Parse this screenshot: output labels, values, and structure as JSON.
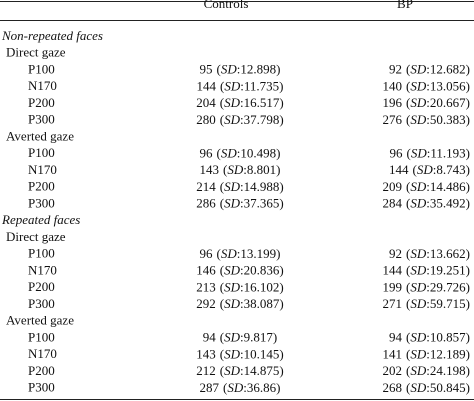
{
  "table": {
    "columns": [
      "Controls",
      "BP"
    ],
    "sd_notation": {
      "open": "(",
      "label": "SD",
      "sep": ":",
      "close": ")"
    },
    "sections": [
      {
        "title": "Non-repeated faces",
        "groups": [
          {
            "title": "Direct gaze",
            "rows": [
              {
                "label": "P100",
                "cells": [
                  {
                    "mean": 95,
                    "sd": 12.898
                  },
                  {
                    "mean": 92,
                    "sd": 12.682
                  }
                ]
              },
              {
                "label": "N170",
                "cells": [
                  {
                    "mean": 144,
                    "sd": 11.735
                  },
                  {
                    "mean": 140,
                    "sd": 13.056
                  }
                ]
              },
              {
                "label": "P200",
                "cells": [
                  {
                    "mean": 204,
                    "sd": 16.517
                  },
                  {
                    "mean": 196,
                    "sd": 20.667
                  }
                ]
              },
              {
                "label": "P300",
                "cells": [
                  {
                    "mean": 280,
                    "sd": 37.798
                  },
                  {
                    "mean": 276,
                    "sd": 50.383
                  }
                ]
              }
            ]
          },
          {
            "title": "Averted gaze",
            "rows": [
              {
                "label": "P100",
                "cells": [
                  {
                    "mean": 96,
                    "sd": 10.498
                  },
                  {
                    "mean": 96,
                    "sd": 11.193
                  }
                ]
              },
              {
                "label": "N170",
                "cells": [
                  {
                    "mean": 143,
                    "sd": 8.801
                  },
                  {
                    "mean": 144,
                    "sd": 8.743
                  }
                ]
              },
              {
                "label": "P200",
                "cells": [
                  {
                    "mean": 214,
                    "sd": 14.988
                  },
                  {
                    "mean": 209,
                    "sd": 14.486
                  }
                ]
              },
              {
                "label": "P300",
                "cells": [
                  {
                    "mean": 286,
                    "sd": 37.365
                  },
                  {
                    "mean": 284,
                    "sd": 35.492
                  }
                ]
              }
            ]
          }
        ]
      },
      {
        "title": "Repeated faces",
        "groups": [
          {
            "title": "Direct gaze",
            "rows": [
              {
                "label": "P100",
                "cells": [
                  {
                    "mean": 96,
                    "sd": 13.199
                  },
                  {
                    "mean": 92,
                    "sd": 13.662
                  }
                ]
              },
              {
                "label": "N170",
                "cells": [
                  {
                    "mean": 146,
                    "sd": 20.836
                  },
                  {
                    "mean": 144,
                    "sd": 19.251
                  }
                ]
              },
              {
                "label": "P200",
                "cells": [
                  {
                    "mean": 213,
                    "sd": 16.102
                  },
                  {
                    "mean": 199,
                    "sd": 29.726
                  }
                ]
              },
              {
                "label": "P300",
                "cells": [
                  {
                    "mean": 292,
                    "sd": 38.087
                  },
                  {
                    "mean": 271,
                    "sd": 59.715
                  }
                ]
              }
            ]
          },
          {
            "title": "Averted gaze",
            "rows": [
              {
                "label": "P100",
                "cells": [
                  {
                    "mean": 94,
                    "sd": 9.817
                  },
                  {
                    "mean": 94,
                    "sd": 10.857
                  }
                ]
              },
              {
                "label": "N170",
                "cells": [
                  {
                    "mean": 143,
                    "sd": 10.145
                  },
                  {
                    "mean": 141,
                    "sd": 12.189
                  }
                ]
              },
              {
                "label": "P200",
                "cells": [
                  {
                    "mean": 212,
                    "sd": 14.875
                  },
                  {
                    "mean": 202,
                    "sd": 24.198
                  }
                ]
              },
              {
                "label": "P300",
                "cells": [
                  {
                    "mean": 287,
                    "sd": 36.86
                  },
                  {
                    "mean": 268,
                    "sd": 50.845
                  }
                ]
              }
            ]
          }
        ]
      }
    ]
  }
}
